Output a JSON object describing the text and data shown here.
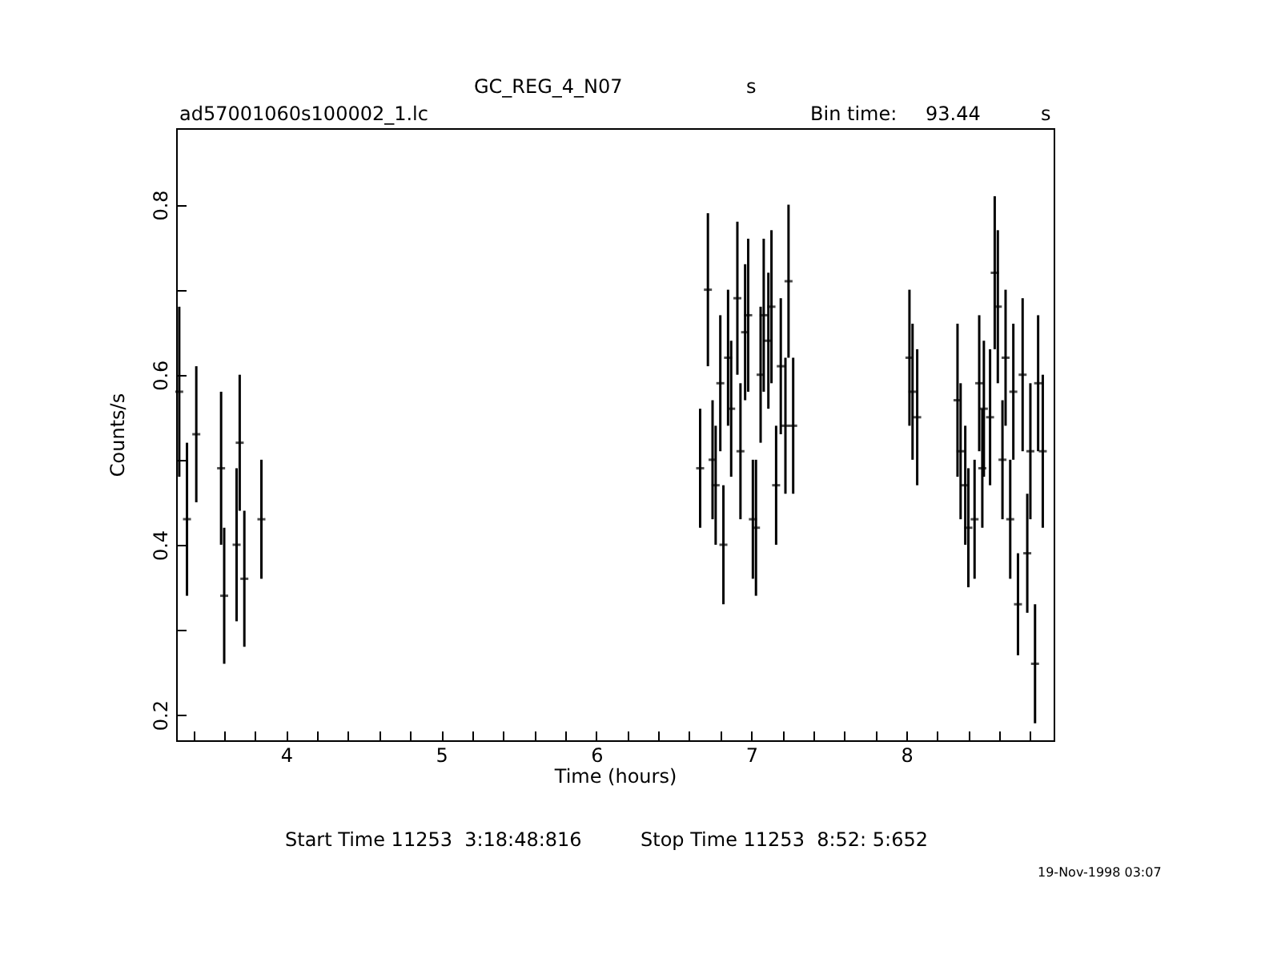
{
  "chart_data": {
    "type": "scatter",
    "title": "GC_REG_4_N07",
    "xlabel": "Time (hours)",
    "ylabel": "Counts/s",
    "annotations": [
      "s",
      "ad57001060s100002_1.lc",
      "Bin time:",
      "93.44",
      "s",
      "Start Time 11253  3:18:48:816",
      "Stop Time 11253  8:52: 5:652",
      "19-Nov-1998 03:07"
    ],
    "series": [
      {
        "color": "#000000",
        "x": [
          3.31,
          3.36,
          3.42,
          3.58,
          3.6,
          3.68,
          3.7,
          3.73,
          3.84,
          6.67,
          6.72,
          6.75,
          6.77,
          6.8,
          6.82,
          6.85,
          6.87,
          6.91,
          6.93,
          6.96,
          6.98,
          7.01,
          7.03,
          7.06,
          7.08,
          7.11,
          7.13,
          7.16,
          7.19,
          7.22,
          7.24,
          7.27,
          8.02,
          8.04,
          8.07,
          8.33,
          8.35,
          8.38,
          8.4,
          8.44,
          8.47,
          8.49,
          8.5,
          8.54,
          8.57,
          8.59,
          8.62,
          8.64,
          8.67,
          8.69,
          8.72,
          8.75,
          8.78,
          8.8,
          8.83,
          8.85,
          8.88
        ],
        "values": [
          0.58,
          0.43,
          0.53,
          0.49,
          0.34,
          0.4,
          0.52,
          0.36,
          0.43,
          0.49,
          0.7,
          0.5,
          0.47,
          0.59,
          0.4,
          0.62,
          0.56,
          0.69,
          0.51,
          0.65,
          0.67,
          0.43,
          0.42,
          0.6,
          0.67,
          0.64,
          0.68,
          0.47,
          0.61,
          0.54,
          0.71,
          0.54,
          0.62,
          0.58,
          0.55,
          0.57,
          0.51,
          0.47,
          0.42,
          0.43,
          0.59,
          0.49,
          0.56,
          0.55,
          0.72,
          0.68,
          0.5,
          0.62,
          0.43,
          0.58,
          0.33,
          0.6,
          0.39,
          0.51,
          0.26,
          0.59,
          0.51
        ],
        "errors": [
          0.1,
          0.09,
          0.08,
          0.09,
          0.08,
          0.09,
          0.08,
          0.08,
          0.07,
          0.07,
          0.09,
          0.07,
          0.07,
          0.08,
          0.07,
          0.08,
          0.08,
          0.09,
          0.08,
          0.08,
          0.09,
          0.07,
          0.08,
          0.08,
          0.09,
          0.08,
          0.09,
          0.07,
          0.08,
          0.08,
          0.09,
          0.08,
          0.08,
          0.08,
          0.08,
          0.09,
          0.08,
          0.07,
          0.07,
          0.07,
          0.08,
          0.07,
          0.08,
          0.08,
          0.09,
          0.09,
          0.07,
          0.08,
          0.07,
          0.08,
          0.06,
          0.09,
          0.07,
          0.08,
          0.07,
          0.08,
          0.09
        ]
      }
    ],
    "xlim": [
      3.29,
      8.95
    ],
    "xticks": [
      {
        "value": 3.4,
        "label": null
      },
      {
        "value": 3.6,
        "label": null
      },
      {
        "value": 3.8,
        "label": null
      },
      4,
      {
        "value": 4.2,
        "label": null
      },
      {
        "value": 4.4,
        "label": null
      },
      {
        "value": 4.6,
        "label": null
      },
      {
        "value": 4.8,
        "label": null
      },
      5,
      {
        "value": 5.2,
        "label": null
      },
      {
        "value": 5.4,
        "label": null
      },
      {
        "value": 5.6,
        "label": null
      },
      {
        "value": 5.8,
        "label": null
      },
      6,
      {
        "value": 6.2,
        "label": null
      },
      {
        "value": 6.4,
        "label": null
      },
      {
        "value": 6.6,
        "label": null
      },
      {
        "value": 6.8,
        "label": null
      },
      7,
      {
        "value": 7.2,
        "label": null
      },
      {
        "value": 7.4,
        "label": null
      },
      {
        "value": 7.6,
        "label": null
      },
      {
        "value": 7.8,
        "label": null
      },
      8,
      {
        "value": 8.2,
        "label": null
      },
      {
        "value": 8.4,
        "label": null
      },
      {
        "value": 8.6,
        "label": null
      },
      {
        "value": 8.8,
        "label": null
      }
    ],
    "ylim": [
      0.17,
      0.89
    ],
    "yticks": [
      0.2,
      {
        "value": 0.3,
        "label": null
      },
      0.4,
      {
        "value": 0.5,
        "label": null
      },
      0.6,
      {
        "value": 0.7,
        "label": null
      },
      0.8
    ],
    "grid": false,
    "legend": false
  }
}
